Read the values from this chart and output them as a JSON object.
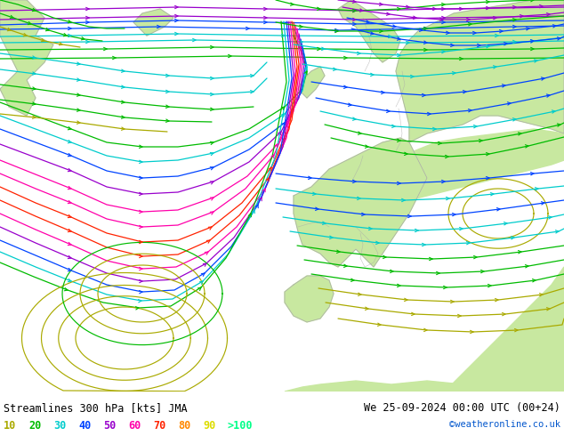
{
  "title_left": "Streamlines 300 hPa [kts] JMA",
  "title_right": "We 25-09-2024 00:00 UTC (00+24)",
  "credit": "©weatheronline.co.uk",
  "bg_color": "#ffffff",
  "ocean_color": "#e8e8e8",
  "land_color": "#c8e8a0",
  "border_color": "#aaaaaa",
  "font_color": "#000000",
  "figsize": [
    6.34,
    4.9
  ],
  "dpi": 100,
  "title_fontsize": 8.5,
  "legend_fontsize": 8.5,
  "legend_items": [
    {
      "val": "10",
      "color": "#aaaa00"
    },
    {
      "val": "20",
      "color": "#00bb00"
    },
    {
      "val": "30",
      "color": "#00cccc"
    },
    {
      "val": "40",
      "color": "#0044ff"
    },
    {
      "val": "50",
      "color": "#9900cc"
    },
    {
      "val": "60",
      "color": "#ff00aa"
    },
    {
      "val": "70",
      "color": "#ff2200"
    },
    {
      "val": "80",
      "color": "#ff8800"
    },
    {
      "val": "90",
      "color": "#dddd00"
    },
    {
      "val": ">100",
      "color": "#00ff88"
    }
  ],
  "speed_color_map": [
    [
      10,
      "#aaaa00"
    ],
    [
      20,
      "#00bb00"
    ],
    [
      30,
      "#00cccc"
    ],
    [
      40,
      "#0044ff"
    ],
    [
      50,
      "#9900cc"
    ],
    [
      60,
      "#ff00aa"
    ],
    [
      70,
      "#ff2200"
    ],
    [
      80,
      "#ff8800"
    ],
    [
      90,
      "#dddd00"
    ],
    [
      100,
      "#00ff88"
    ]
  ]
}
